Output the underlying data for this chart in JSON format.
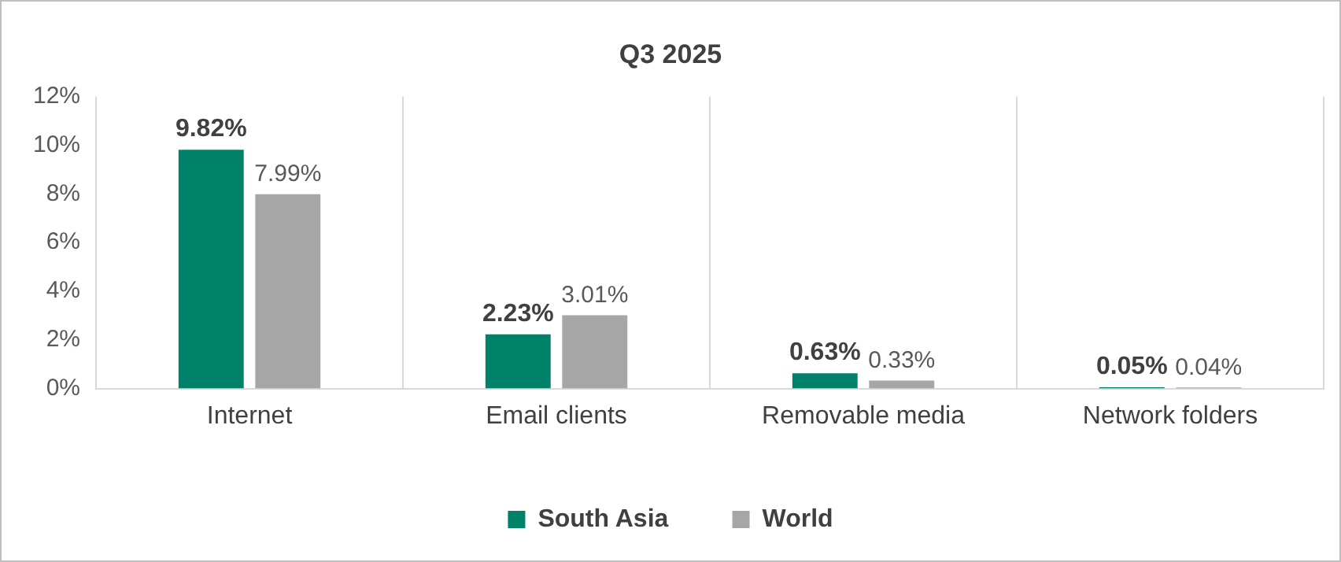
{
  "chart_data": {
    "type": "bar",
    "title": "Q3 2025",
    "categories": [
      "Internet",
      "Email clients",
      "Removable media",
      "Network folders"
    ],
    "series": [
      {
        "name": "South Asia",
        "color": "#00826a",
        "values": [
          9.82,
          2.23,
          0.63,
          0.05
        ],
        "value_labels": [
          "9.82%",
          "2.23%",
          "0.63%",
          "0.05%"
        ]
      },
      {
        "name": "World",
        "color": "#a6a6a6",
        "values": [
          7.99,
          3.01,
          0.33,
          0.04
        ],
        "value_labels": [
          "7.99%",
          "3.01%",
          "0.33%",
          "0.04%"
        ]
      }
    ],
    "ylim": [
      0,
      12
    ],
    "yticks": [
      {
        "value": 0,
        "label": "0%"
      },
      {
        "value": 2,
        "label": "2%"
      },
      {
        "value": 4,
        "label": "4%"
      },
      {
        "value": 6,
        "label": "6%"
      },
      {
        "value": 8,
        "label": "8%"
      },
      {
        "value": 10,
        "label": "10%"
      },
      {
        "value": 12,
        "label": "12%"
      }
    ],
    "grid": "x",
    "legend": "bottom"
  }
}
